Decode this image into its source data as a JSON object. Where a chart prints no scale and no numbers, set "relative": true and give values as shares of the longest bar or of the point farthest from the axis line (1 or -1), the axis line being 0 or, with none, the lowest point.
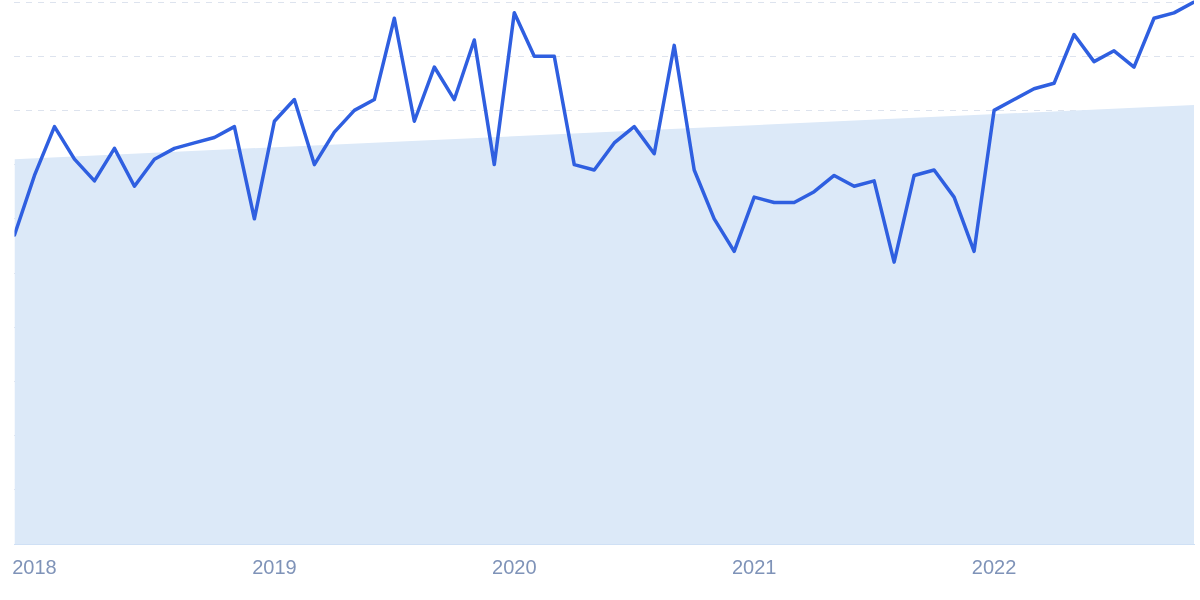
{
  "chart_data": {
    "type": "line",
    "relative": true,
    "x": [
      "2017-12",
      "2018-01",
      "2018-02",
      "2018-03",
      "2018-04",
      "2018-05",
      "2018-06",
      "2018-07",
      "2018-08",
      "2018-09",
      "2018-10",
      "2018-11",
      "2018-12",
      "2019-01",
      "2019-02",
      "2019-03",
      "2019-04",
      "2019-05",
      "2019-06",
      "2019-07",
      "2019-08",
      "2019-09",
      "2019-10",
      "2019-11",
      "2019-12",
      "2020-01",
      "2020-02",
      "2020-03",
      "2020-04",
      "2020-05",
      "2020-06",
      "2020-07",
      "2020-08",
      "2020-09",
      "2020-10",
      "2020-11",
      "2020-12",
      "2021-01",
      "2021-02",
      "2021-03",
      "2021-04",
      "2021-05",
      "2021-06",
      "2021-07",
      "2021-08",
      "2021-09",
      "2021-10",
      "2021-11",
      "2021-12",
      "2022-01",
      "2022-02",
      "2022-03",
      "2022-04",
      "2022-05",
      "2022-06",
      "2022-07",
      "2022-08",
      "2022-09",
      "2022-10",
      "2022-11"
    ],
    "series": [
      {
        "type": "line",
        "color": "#2f5fe0",
        "values": [
          0.57,
          0.68,
          0.77,
          0.71,
          0.67,
          0.73,
          0.66,
          0.71,
          0.73,
          0.74,
          0.75,
          0.77,
          0.6,
          0.78,
          0.82,
          0.7,
          0.76,
          0.8,
          0.82,
          0.97,
          0.78,
          0.88,
          0.82,
          0.93,
          0.7,
          0.98,
          0.9,
          0.9,
          0.7,
          0.69,
          0.74,
          0.77,
          0.72,
          0.92,
          0.69,
          0.6,
          0.54,
          0.64,
          0.63,
          0.63,
          0.65,
          0.68,
          0.66,
          0.67,
          0.52,
          0.68,
          0.69,
          0.64,
          0.54,
          0.8,
          0.82,
          0.84,
          0.85,
          0.94,
          0.89,
          0.91,
          0.88,
          0.97,
          0.98,
          1.0
        ]
      },
      {
        "type": "area",
        "color": "#dce9f8",
        "x": [
          "2017-12",
          "2022-11"
        ],
        "values": [
          0.71,
          0.81
        ]
      }
    ],
    "xlim": [
      "2017-12",
      "2022-11"
    ],
    "xticks": [
      {
        "value": "2018-01",
        "label": "2018"
      },
      {
        "value": "2019-01",
        "label": "2019"
      },
      {
        "value": "2020-01",
        "label": "2020"
      },
      {
        "value": "2021-01",
        "label": "2021"
      },
      {
        "value": "2022-01",
        "label": "2022"
      }
    ],
    "grid": "y",
    "legend": false,
    "marker": "none",
    "line_style": "solid",
    "tick_labels": "x"
  }
}
